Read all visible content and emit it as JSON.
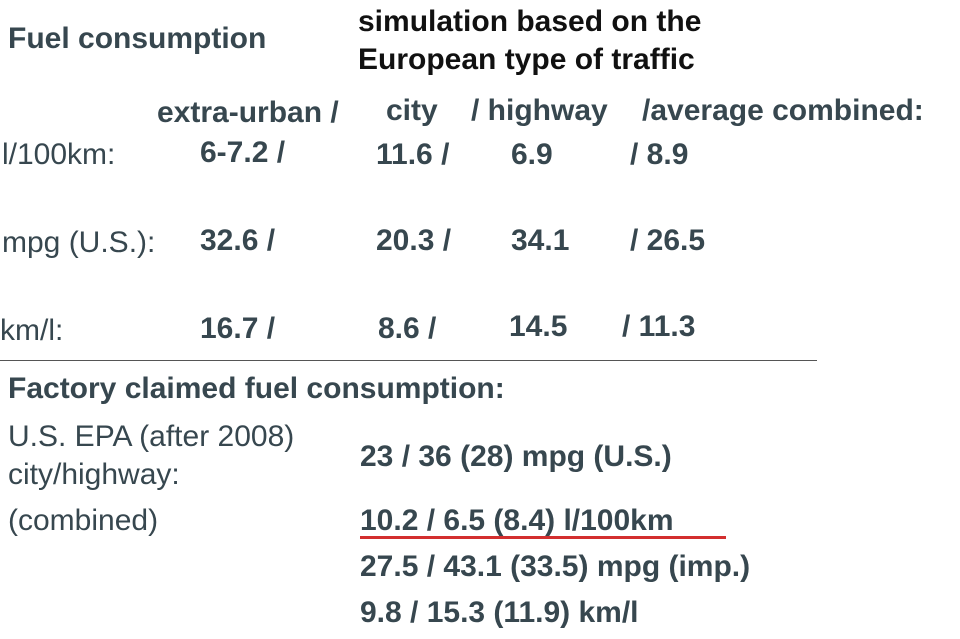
{
  "header": {
    "title": "Fuel consumption",
    "simulation_note_line1": "simulation based on the",
    "simulation_note_line2": "European type of traffic"
  },
  "table": {
    "columns": [
      "extra-urban /",
      "city",
      "/ highway",
      "/average combined:"
    ],
    "rows": [
      {
        "label": "l/100km:",
        "values": [
          "6-7.2 /",
          "11.6  /",
          "6.9",
          "/  8.9"
        ]
      },
      {
        "label": "mpg (U.S.):",
        "values": [
          "32.6 /",
          "20.3 /",
          "34.1",
          "/ 26.5"
        ]
      },
      {
        "label": "km/l:",
        "values": [
          "16.7 /",
          "8.6 /",
          "14.5",
          "/ 11.3"
        ]
      }
    ]
  },
  "factory": {
    "title": "Factory claimed fuel consumption:",
    "label_line1": "U.S. EPA (after 2008)",
    "label_line2": "city/highway:",
    "label_line3": "(combined)",
    "values": [
      "23 / 36 (28) mpg (U.S.)",
      "10.2 / 6.5 (8.4) l/100km",
      "27.5 / 43.1 (33.5) mpg (imp.)",
      "9.8 / 15.3 (11.9) km/l"
    ],
    "highlight_color": "#d32f2f"
  }
}
